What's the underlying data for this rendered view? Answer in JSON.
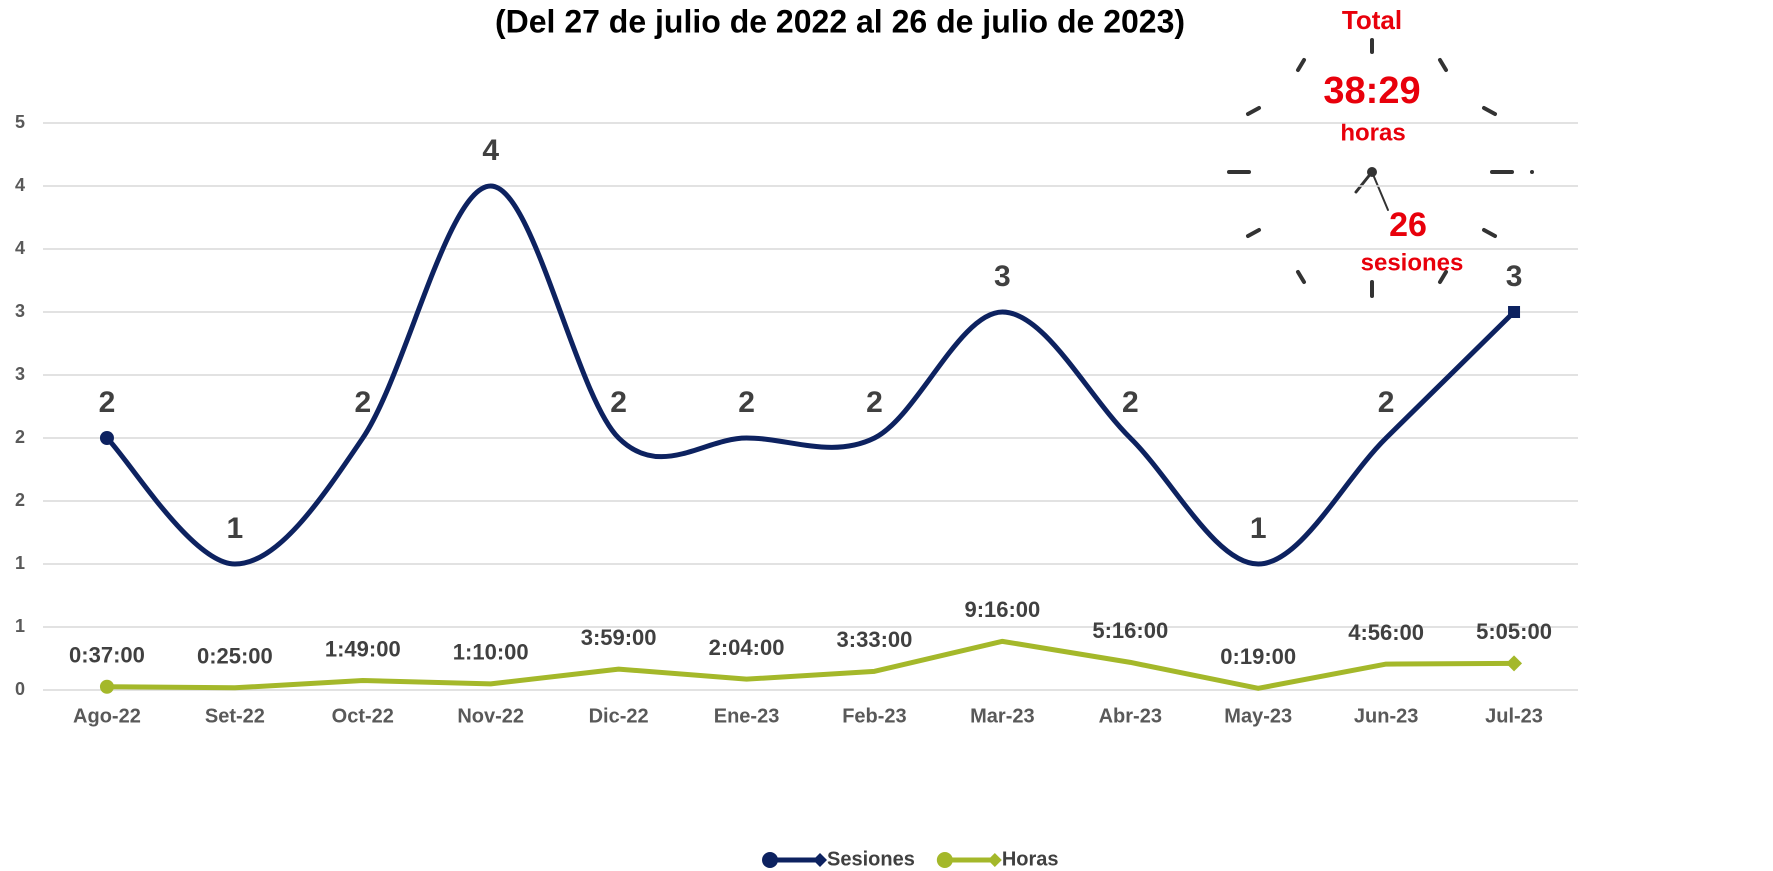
{
  "chart_data": {
    "type": "line",
    "title": "(Del 27 de julio  de 2022 al 26 de julio de 2023)",
    "categories": [
      "Ago-22",
      "Set-22",
      "Oct-22",
      "Nov-22",
      "Dic-22",
      "Ene-23",
      "Feb-23",
      "Mar-23",
      "Abr-23",
      "May-23",
      "Jun-23",
      "Jul-23"
    ],
    "series": [
      {
        "name": "Sesiones",
        "color": "#0d2260",
        "smooth": true,
        "values": [
          2,
          1,
          2,
          4,
          2,
          2,
          2,
          3,
          2,
          1,
          2,
          3
        ]
      },
      {
        "name": "Horas",
        "color": "#a4b82a",
        "smooth": false,
        "values": [
          0.0257,
          0.0174,
          0.0757,
          0.0486,
          0.166,
          0.0861,
          0.1479,
          0.3861,
          0.2194,
          0.0132,
          0.2056,
          0.2118
        ],
        "value_labels": [
          "0:37:00",
          "0:25:00",
          "1:49:00",
          "1:10:00",
          "3:59:00",
          "2:04:00",
          "3:33:00",
          "9:16:00",
          "5:16:00",
          "0:19:00",
          "4:56:00",
          "5:05:00"
        ]
      }
    ],
    "ylim": [
      0,
      4.5
    ],
    "yticks": [
      0,
      {
        "value": 0.5,
        "label": "1"
      },
      1,
      {
        "value": 1.5,
        "label": "2"
      },
      2,
      {
        "value": 2.5,
        "label": "3"
      },
      3,
      {
        "value": 3.5,
        "label": "4"
      },
      4,
      {
        "value": 4.5,
        "label": "5"
      }
    ],
    "grid": true,
    "legend": "bottom",
    "annotations": {
      "total": "Total",
      "hours": "38:29",
      "hours_unit": "horas",
      "sessions": "26",
      "sessions_unit": "sesiones"
    }
  }
}
